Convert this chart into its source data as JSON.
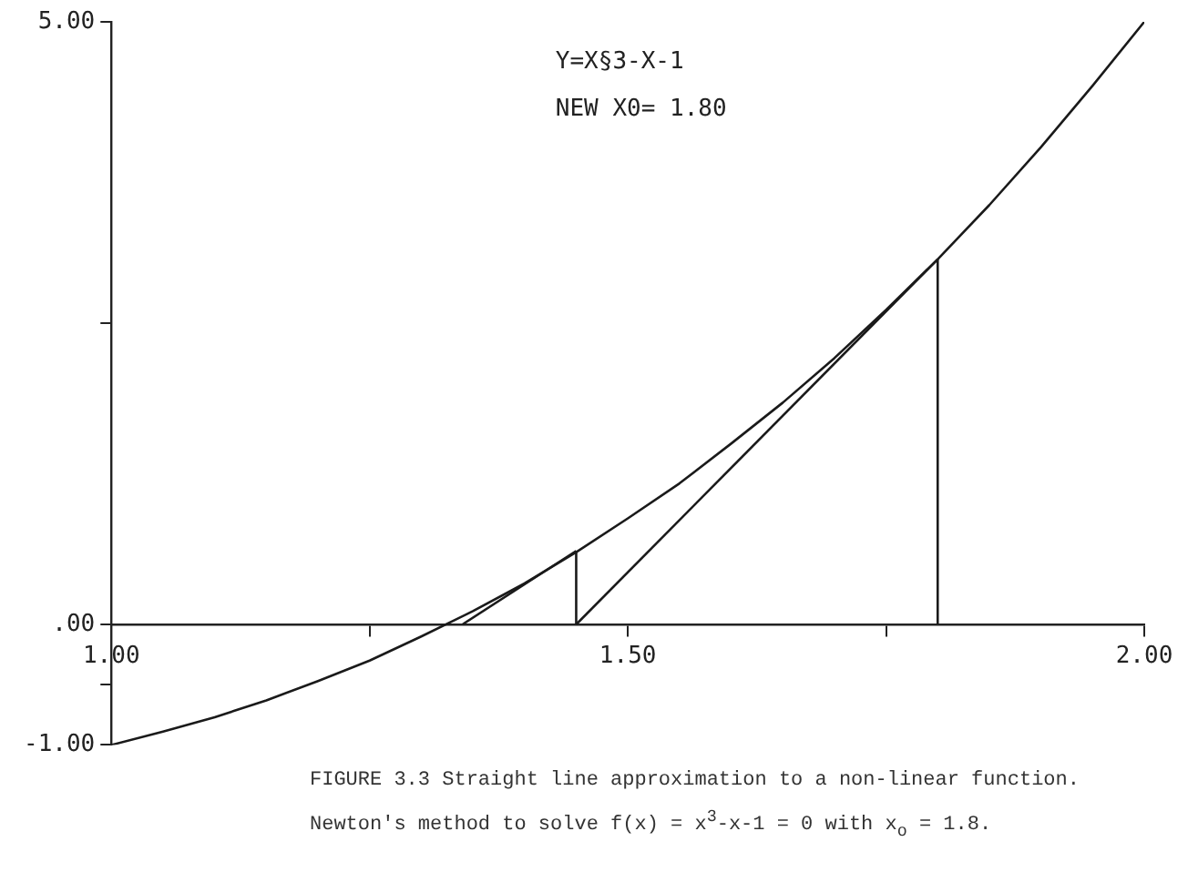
{
  "chart_data": {
    "type": "line",
    "xlim": [
      1,
      2
    ],
    "ylim": [
      -1,
      5
    ],
    "xticks": [
      {
        "value": 1,
        "label": "1.00"
      },
      {
        "value": 1.25,
        "label": null
      },
      {
        "value": 1.5,
        "label": "1.50"
      },
      {
        "value": 1.75,
        "label": null
      },
      {
        "value": 2,
        "label": "2.00"
      }
    ],
    "yticks": [
      {
        "value": -1,
        "label": "-1.00"
      },
      {
        "value": -0.5,
        "label": null
      },
      {
        "value": 0,
        "label": ".00"
      },
      {
        "value": 2.5,
        "label": null
      },
      {
        "value": 5,
        "label": "5.00"
      }
    ],
    "grid": false,
    "marker": "none",
    "line_style": "solid",
    "annotations": [
      "Y=X§3-X-1",
      "NEW X0= 1.80",
      "FIGURE 3.3   Straight line approximation to a non-linear function.",
      "Newton's method to solve f(x) = x$^{3}$-x-1 = 0 with x$_{o}$ = 1.8."
    ],
    "series": [
      {
        "color": "#1a1a1a",
        "x": [
          1,
          1.05,
          1.1,
          1.15,
          1.2,
          1.25,
          1.3,
          1.35,
          1.4,
          1.45,
          1.5,
          1.55,
          1.6,
          1.65,
          1.7,
          1.75,
          1.8,
          1.85,
          1.9,
          1.95,
          2
        ],
        "values": [
          -1,
          -0.89,
          -0.77,
          -0.63,
          -0.47,
          -0.3,
          -0.1,
          0.11,
          0.34,
          0.6,
          0.88,
          1.17,
          1.5,
          1.84,
          2.21,
          2.61,
          3.03,
          3.48,
          3.96,
          4.47,
          5
        ]
      },
      {
        "color": "#1a1a1a",
        "x": [
          1.45,
          1.8
        ],
        "values": [
          0,
          3.03
        ]
      },
      {
        "color": "#1a1a1a",
        "x": [
          1.8,
          1.8
        ],
        "values": [
          0,
          3.03
        ]
      },
      {
        "color": "#1a1a1a",
        "x": [
          1.34,
          1.45
        ],
        "values": [
          0,
          0.61
        ]
      },
      {
        "color": "#1a1a1a",
        "x": [
          1.45,
          1.45
        ],
        "values": [
          0,
          0.61
        ]
      }
    ]
  }
}
